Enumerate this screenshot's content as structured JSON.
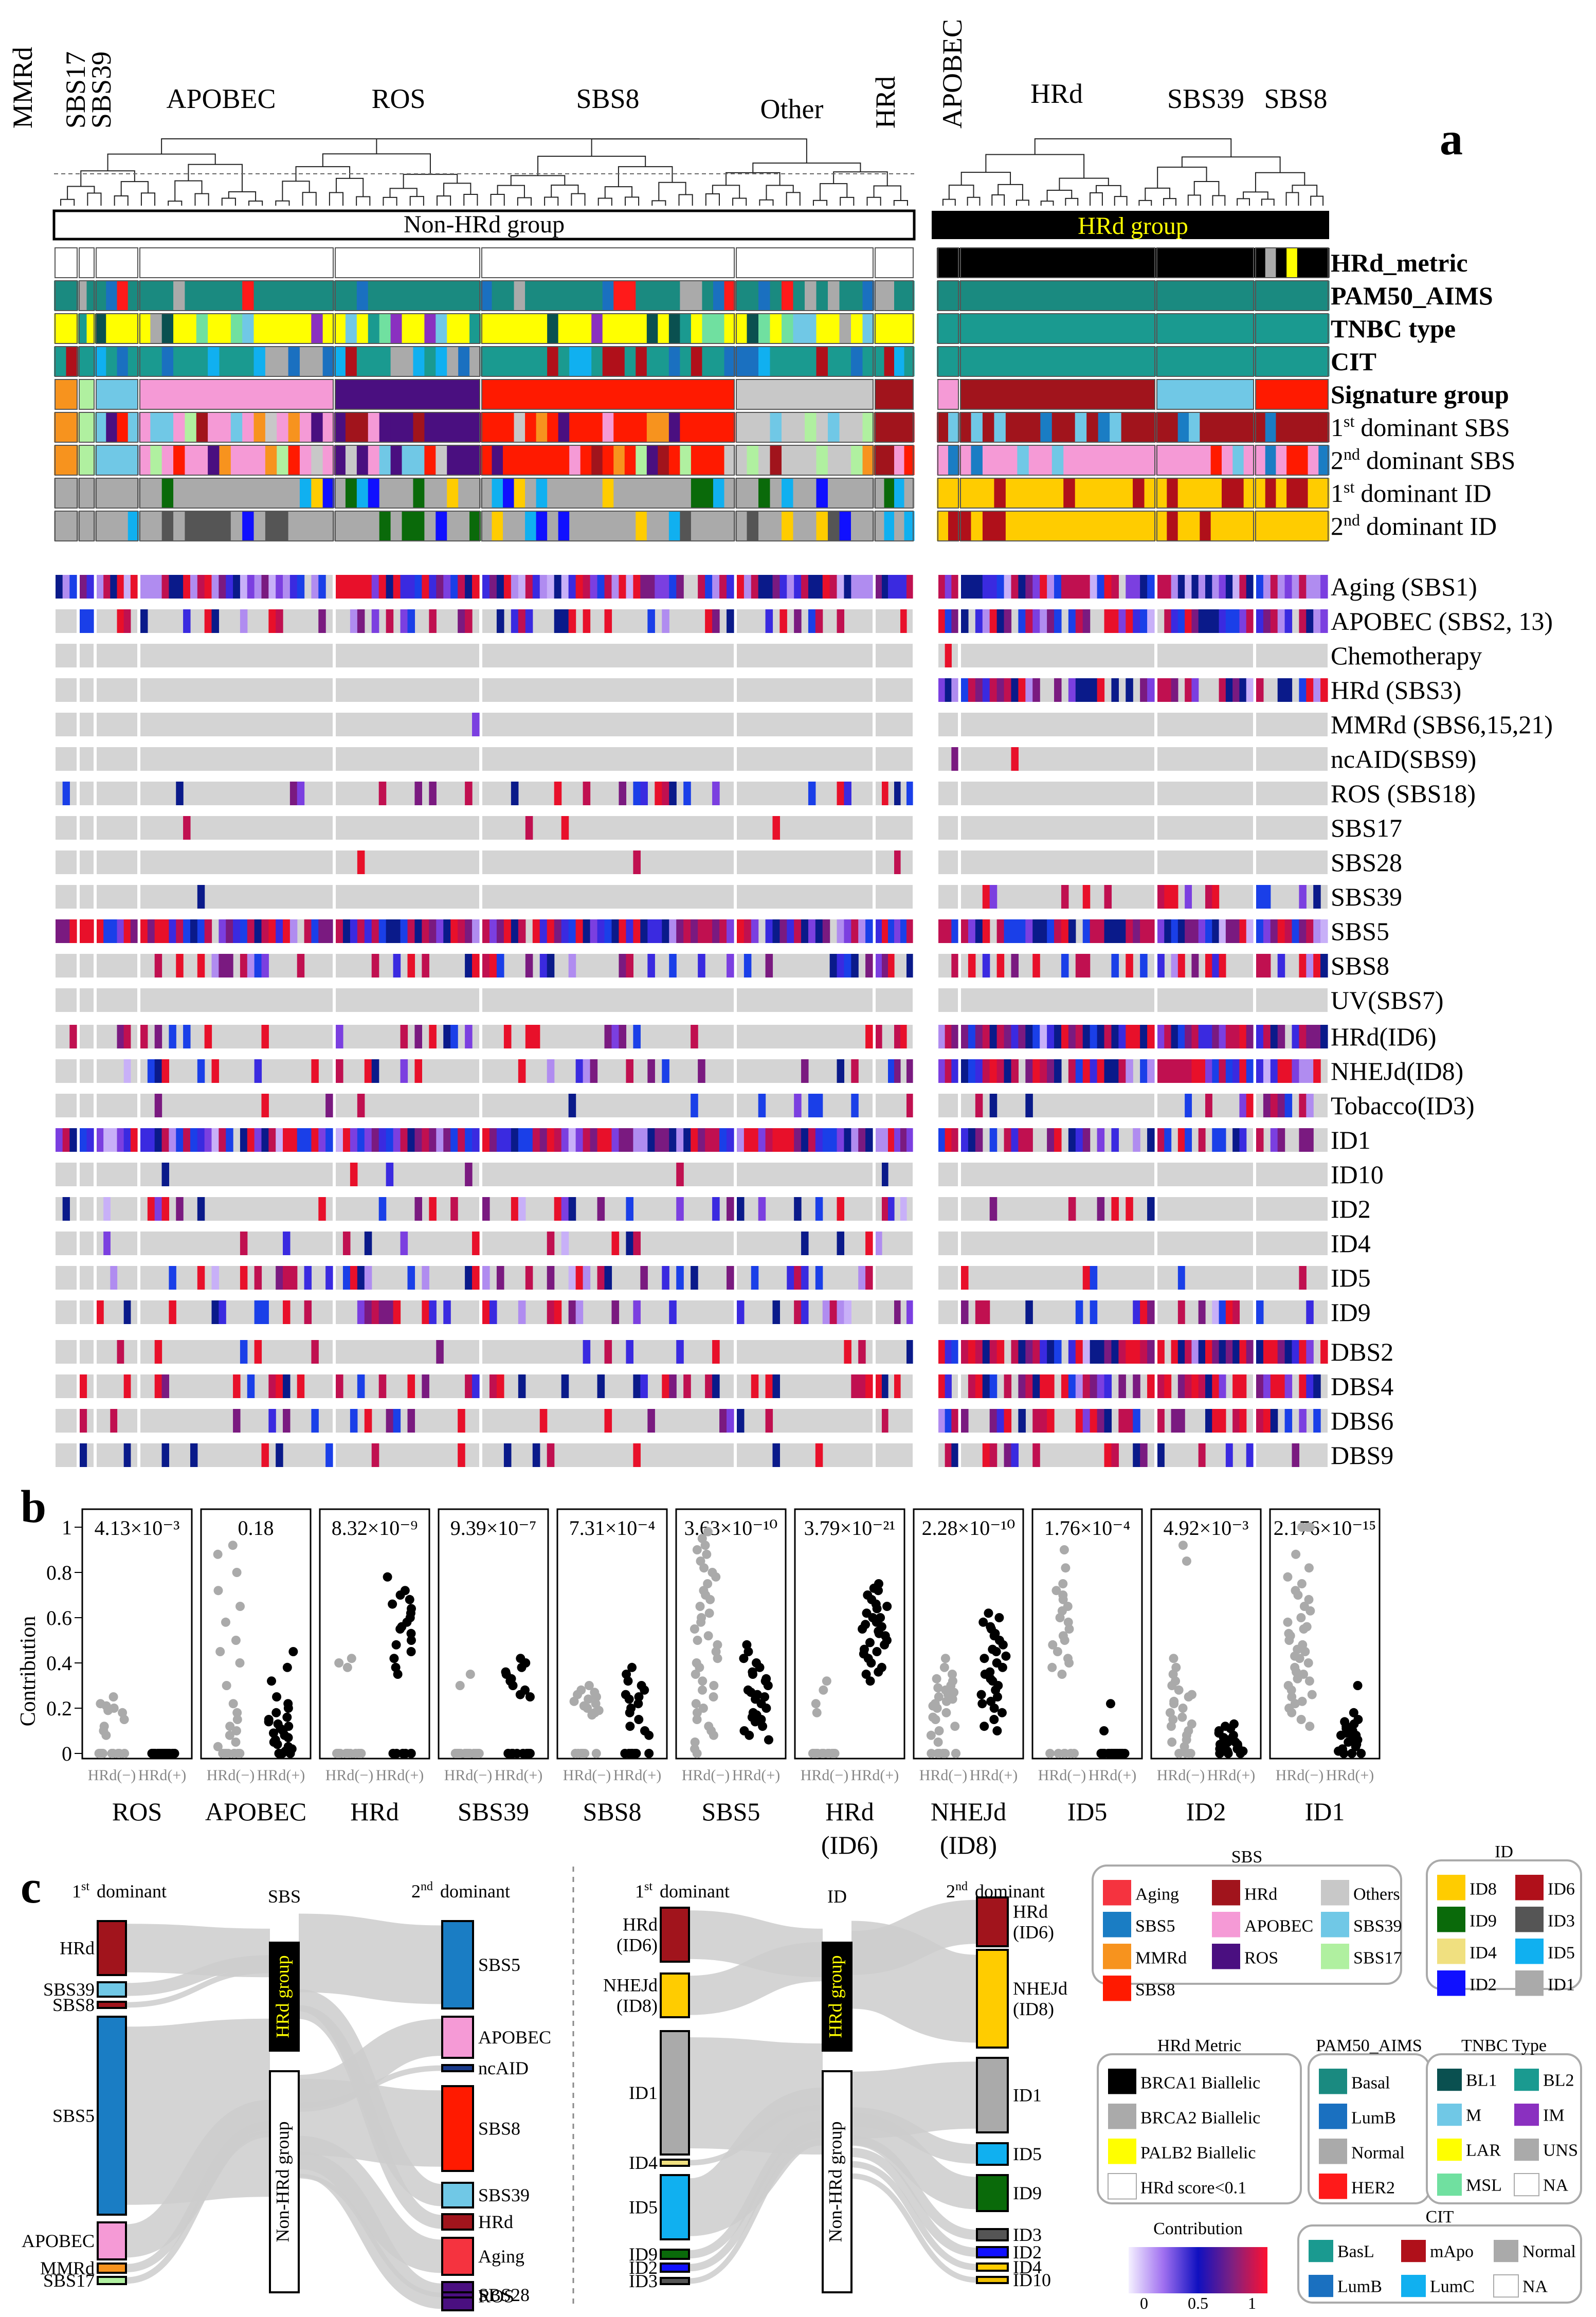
{
  "panel_labels": {
    "a": "a",
    "b": "b",
    "c": "c"
  },
  "panel_a": {
    "left_clusters": [
      "MMRd",
      "SBS17",
      "SBS39",
      "APOBEC",
      "ROS",
      "SBS8",
      "Other",
      "HRd"
    ],
    "right_clusters": [
      "APOBEC",
      "HRd",
      "SBS39",
      "SBS8"
    ],
    "group_left": "Non-HRd group",
    "group_right": "HRd group",
    "annotation_rows": [
      "HRd_metric",
      "PAM50_AIMS",
      "TNBC type",
      "CIT",
      "Signature group"
    ],
    "dominant_rows": [
      {
        "ord": "1",
        "sup": "st",
        "label": "dominant  SBS"
      },
      {
        "ord": "2",
        "sup": "nd",
        "label": "dominant  SBS"
      },
      {
        "ord": "1",
        "sup": "st",
        "label": "dominant  ID"
      },
      {
        "ord": "2",
        "sup": "nd",
        "label": "dominant  ID"
      }
    ],
    "signature_rows": [
      "Aging (SBS1)",
      "APOBEC (SBS2, 13)",
      "Chemotherapy",
      "HRd (SBS3)",
      "MMRd (SBS6,15,21)",
      "ncAID(SBS9)",
      "ROS (SBS18)",
      "SBS17",
      "SBS28",
      "SBS39",
      "SBS5",
      "SBS8",
      "UV(SBS7)",
      "HRd(ID6)",
      "NHEJd(ID8)",
      "Tobacco(ID3)",
      "ID1",
      "ID10",
      "ID2",
      "ID4",
      "ID5",
      "ID9",
      "DBS2",
      "DBS4",
      "DBS6",
      "DBS9"
    ]
  },
  "chart_data": {
    "type": "scatter",
    "ylabel": "Contribution",
    "ylim": [
      0,
      1
    ],
    "yticks": [
      "0",
      "0.2",
      "0.4",
      "0.6",
      "0.8",
      "1"
    ],
    "group_labels": [
      "HRd(−)",
      "HRd(+)"
    ],
    "series_colors": {
      "HRd(−)": "#aaaaaa",
      "HRd(+)": "#000000"
    },
    "panels": [
      {
        "name": "ROS",
        "name2": "",
        "p_value": "4.13×10⁻³",
        "neg": [
          0.2,
          0.18,
          0.22,
          0.15,
          0.12,
          0.25,
          0.08,
          0.1,
          0.19,
          0.21,
          0,
          0,
          0,
          0,
          0,
          0,
          0,
          0,
          0,
          0,
          0,
          0
        ],
        "pos": [
          0,
          0,
          0,
          0,
          0,
          0,
          0,
          0,
          0,
          0,
          0,
          0,
          0,
          0,
          0,
          0,
          0,
          0,
          0,
          0,
          0,
          0,
          0,
          0,
          0,
          0,
          0,
          0
        ]
      },
      {
        "name": "APOBEC",
        "name2": "",
        "p_value": "0.18",
        "neg": [
          0.92,
          0.88,
          0.8,
          0.72,
          0.65,
          0.58,
          0.5,
          0.45,
          0.4,
          0.3,
          0.22,
          0.18,
          0.15,
          0.12,
          0.1,
          0.08,
          0.05,
          0.03,
          0,
          0,
          0,
          0,
          0,
          0,
          0,
          0
        ],
        "pos": [
          0.45,
          0.38,
          0.32,
          0.25,
          0.22,
          0.2,
          0.18,
          0.16,
          0.15,
          0.14,
          0.13,
          0.12,
          0.11,
          0.1,
          0.09,
          0.08,
          0.07,
          0.06,
          0.05,
          0.04,
          0.03,
          0.02,
          0.01,
          0,
          0,
          0
        ]
      },
      {
        "name": "HRd",
        "name2": "",
        "p_value": "8.32×10⁻⁹",
        "neg": [
          0.42,
          0.4,
          0.38,
          0,
          0,
          0,
          0,
          0,
          0,
          0,
          0,
          0,
          0,
          0,
          0,
          0,
          0
        ],
        "pos": [
          0.78,
          0.72,
          0.7,
          0.68,
          0.66,
          0.64,
          0.62,
          0.6,
          0.58,
          0.56,
          0.55,
          0.53,
          0.5,
          0.48,
          0.45,
          0.42,
          0.38,
          0.35,
          0,
          0,
          0,
          0,
          0,
          0
        ]
      },
      {
        "name": "SBS39",
        "name2": "",
        "p_value": "9.39×10⁻⁷",
        "neg": [
          0.35,
          0.3,
          0,
          0,
          0,
          0,
          0,
          0,
          0,
          0,
          0,
          0,
          0,
          0,
          0,
          0,
          0,
          0,
          0,
          0
        ],
        "pos": [
          0.42,
          0.4,
          0.38,
          0.36,
          0.35,
          0.33,
          0.32,
          0.3,
          0.28,
          0.26,
          0.25,
          0,
          0,
          0,
          0,
          0,
          0,
          0,
          0,
          0,
          0
        ]
      },
      {
        "name": "SBS8",
        "name2": "",
        "p_value": "7.31×10⁻⁴",
        "neg": [
          0.3,
          0.28,
          0.27,
          0.26,
          0.25,
          0.24,
          0.23,
          0.22,
          0.21,
          0.2,
          0.19,
          0.18,
          0.17,
          0,
          0,
          0,
          0,
          0,
          0,
          0,
          0,
          0
        ],
        "pos": [
          0.38,
          0.35,
          0.32,
          0.3,
          0.28,
          0.26,
          0.25,
          0.24,
          0.22,
          0.2,
          0.18,
          0.15,
          0.12,
          0.1,
          0.08,
          0,
          0,
          0,
          0,
          0,
          0,
          0
        ]
      },
      {
        "name": "SBS5",
        "name2": "",
        "p_value": "3.63×10⁻¹⁰",
        "neg": [
          0.98,
          0.95,
          0.92,
          0.9,
          0.88,
          0.85,
          0.82,
          0.8,
          0.78,
          0.75,
          0.72,
          0.7,
          0.68,
          0.65,
          0.62,
          0.6,
          0.58,
          0.55,
          0.52,
          0.5,
          0.48,
          0.45,
          0.42,
          0.4,
          0.38,
          0.35,
          0.32,
          0.3,
          0.28,
          0.25,
          0.22,
          0.2,
          0.18,
          0.15,
          0.12,
          0.1,
          0.08,
          0.05,
          0.02,
          0
        ],
        "pos": [
          0.48,
          0.45,
          0.42,
          0.4,
          0.38,
          0.36,
          0.35,
          0.33,
          0.32,
          0.3,
          0.28,
          0.27,
          0.26,
          0.25,
          0.24,
          0.22,
          0.2,
          0.18,
          0.17,
          0.16,
          0.15,
          0.14,
          0.12,
          0.1,
          0.08,
          0.06
        ]
      },
      {
        "name": "HRd",
        "name2": "(ID6)",
        "p_value": "3.79×10⁻²¹",
        "neg": [
          0.32,
          0.28,
          0.22,
          0.18,
          0,
          0,
          0,
          0,
          0,
          0,
          0,
          0,
          0,
          0,
          0,
          0,
          0,
          0,
          0,
          0
        ],
        "pos": [
          0.75,
          0.73,
          0.72,
          0.7,
          0.68,
          0.66,
          0.65,
          0.64,
          0.62,
          0.6,
          0.6,
          0.58,
          0.57,
          0.56,
          0.55,
          0.54,
          0.53,
          0.52,
          0.5,
          0.49,
          0.48,
          0.46,
          0.45,
          0.44,
          0.42,
          0.4,
          0.38,
          0.36,
          0.35,
          0.32
        ]
      },
      {
        "name": "NHEJd",
        "name2": "(ID8)",
        "p_value": "2.28×10⁻¹⁰",
        "neg": [
          0.42,
          0.38,
          0.35,
          0.33,
          0.32,
          0.3,
          0.29,
          0.28,
          0.27,
          0.26,
          0.25,
          0.24,
          0.23,
          0.22,
          0.21,
          0.2,
          0.18,
          0.16,
          0.15,
          0.12,
          0.1,
          0.08,
          0.05,
          0,
          0,
          0,
          0,
          0,
          0,
          0
        ],
        "pos": [
          0.62,
          0.6,
          0.58,
          0.56,
          0.55,
          0.53,
          0.52,
          0.5,
          0.48,
          0.46,
          0.45,
          0.43,
          0.42,
          0.4,
          0.38,
          0.36,
          0.35,
          0.33,
          0.32,
          0.3,
          0.28,
          0.26,
          0.25,
          0.23,
          0.22,
          0.2,
          0.18,
          0.15,
          0.12,
          0.1
        ]
      },
      {
        "name": "ID5",
        "name2": "",
        "p_value": "1.76×10⁻⁴",
        "neg": [
          0.9,
          0.82,
          0.75,
          0.72,
          0.7,
          0.68,
          0.65,
          0.63,
          0.6,
          0.58,
          0.55,
          0.52,
          0.5,
          0.48,
          0.45,
          0.42,
          0.4,
          0.38,
          0.35,
          0,
          0,
          0,
          0,
          0,
          0
        ],
        "pos": [
          0.22,
          0.1,
          0,
          0,
          0,
          0,
          0,
          0,
          0,
          0,
          0,
          0,
          0,
          0,
          0,
          0,
          0,
          0,
          0,
          0
        ]
      },
      {
        "name": "ID2",
        "name2": "",
        "p_value": "4.92×10⁻³",
        "neg": [
          0.92,
          0.85,
          0.42,
          0.38,
          0.35,
          0.32,
          0.3,
          0.28,
          0.26,
          0.25,
          0.23,
          0.22,
          0.2,
          0.18,
          0.16,
          0.15,
          0.13,
          0.12,
          0.1,
          0.08,
          0.06,
          0.05,
          0.03,
          0,
          0,
          0,
          0,
          0
        ],
        "pos": [
          0.13,
          0.12,
          0.11,
          0.1,
          0.09,
          0.08,
          0.07,
          0.06,
          0.06,
          0.05,
          0.05,
          0.04,
          0.04,
          0.03,
          0.03,
          0.02,
          0.02,
          0.01,
          0.01,
          0,
          0,
          0
        ]
      },
      {
        "name": "ID1",
        "name2": "",
        "p_value": "2.176×10⁻¹⁵",
        "neg": [
          1,
          1,
          1,
          0.88,
          0.82,
          0.78,
          0.75,
          0.72,
          0.7,
          0.68,
          0.65,
          0.63,
          0.6,
          0.58,
          0.56,
          0.55,
          0.53,
          0.52,
          0.5,
          0.48,
          0.46,
          0.45,
          0.43,
          0.42,
          0.4,
          0.38,
          0.36,
          0.35,
          0.33,
          0.32,
          0.3,
          0.28,
          0.26,
          0.25,
          0.23,
          0.22,
          0.2,
          0.18,
          0.15,
          0.12
        ],
        "pos": [
          0.3,
          0.18,
          0.15,
          0.14,
          0.13,
          0.12,
          0.11,
          0.1,
          0.09,
          0.08,
          0.08,
          0.07,
          0.06,
          0.05,
          0.05,
          0.04,
          0.03,
          0.02,
          0.01,
          0,
          0,
          0
        ]
      }
    ]
  },
  "panel_c": {
    "sbs_sankey": {
      "left_title_ord": "1",
      "left_title_sup": "st",
      "left_title": "dominant",
      "mid_title": "SBS",
      "right_title_ord": "2",
      "right_title_sup": "nd",
      "right_title": "dominant",
      "left_nodes": [
        "HRd",
        "SBS39",
        "SBS8",
        "SBS5",
        "APOBEC",
        "MMRd",
        "SBS17"
      ],
      "mid_nodes": [
        "HRd group",
        "Non-HRd group"
      ],
      "right_nodes": [
        "SBS5",
        "APOBEC",
        "ncAID",
        "SBS8",
        "SBS39",
        "HRd",
        "Aging",
        "ROS",
        "SBS28"
      ]
    },
    "id_sankey": {
      "left_title_ord": "1",
      "left_title_sup": "st",
      "left_title": "dominant",
      "mid_title": "ID",
      "right_title_ord": "2",
      "right_title_sup": "nd",
      "right_title": "dominant",
      "left_nodes": [
        "HRd\n(ID6)",
        "NHEJd\n(ID8)",
        "ID1",
        "ID4",
        "ID5",
        "ID9",
        "ID2",
        "ID3"
      ],
      "mid_nodes": [
        "HRd group",
        "Non-HRd group"
      ],
      "right_nodes": [
        "HRd\n(ID6)",
        "NHEJd\n(ID8)",
        "ID1",
        "ID5",
        "ID9",
        "ID3",
        "ID2",
        "ID4",
        "ID10"
      ]
    },
    "legends": {
      "sbs": {
        "title": "SBS",
        "items": [
          {
            "label": "Aging",
            "color": "#f5333f"
          },
          {
            "label": "HRd",
            "color": "#a1141c"
          },
          {
            "label": "Others",
            "color": "#c8c8c8"
          },
          {
            "label": "SBS5",
            "color": "#1a7dc4"
          },
          {
            "label": "APOBEC",
            "color": "#f59ad6"
          },
          {
            "label": "SBS39",
            "color": "#70c8e6"
          },
          {
            "label": "MMRd",
            "color": "#f7931e"
          },
          {
            "label": "ROS",
            "color": "#4a0f80"
          },
          {
            "label": "SBS17",
            "color": "#b0f0a0"
          },
          {
            "label": "SBS8",
            "color": "#ff1a00"
          }
        ]
      },
      "id": {
        "title": "ID",
        "items": [
          {
            "label": "ID8",
            "color": "#ffcc00"
          },
          {
            "label": "ID6",
            "color": "#b0101a"
          },
          {
            "label": "ID9",
            "color": "#0a6a0a"
          },
          {
            "label": "ID3",
            "color": "#555555"
          },
          {
            "label": "ID4",
            "color": "#f0e080"
          },
          {
            "label": "ID5",
            "color": "#10b0f0"
          },
          {
            "label": "ID2",
            "color": "#1010ff"
          },
          {
            "label": "ID1",
            "color": "#aaaaaa"
          }
        ]
      },
      "hrd_metric": {
        "title": "HRd Metric",
        "items": [
          {
            "label": "BRCA1 Biallelic",
            "color": "#000000"
          },
          {
            "label": "BRCA2 Biallelic",
            "color": "#aaaaaa"
          },
          {
            "label": "PALB2 Biallelic",
            "color": "#ffff00"
          },
          {
            "label": "HRd score<0.1",
            "color": "#ffffff"
          }
        ]
      },
      "pam50": {
        "title": "PAM50_AIMS",
        "items": [
          {
            "label": "Basal",
            "color": "#1a8a80"
          },
          {
            "label": "LumB",
            "color": "#1a70c0"
          },
          {
            "label": "Normal",
            "color": "#aaaaaa"
          },
          {
            "label": "HER2",
            "color": "#ff1a1a"
          }
        ]
      },
      "tnbc": {
        "title": "TNBC Type",
        "items": [
          {
            "label": "BL1",
            "color": "#0a5050"
          },
          {
            "label": "BL2",
            "color": "#1a9a90"
          },
          {
            "label": "M",
            "color": "#70c8e6"
          },
          {
            "label": "IM",
            "color": "#8a30c0"
          },
          {
            "label": "LAR",
            "color": "#ffff00"
          },
          {
            "label": "UNS",
            "color": "#aaaaaa"
          },
          {
            "label": "MSL",
            "color": "#70e0a0"
          },
          {
            "label": "NA",
            "color": "#ffffff"
          }
        ]
      },
      "cit": {
        "title": "CIT",
        "items": [
          {
            "label": "BasL",
            "color": "#1a9a90"
          },
          {
            "label": "mApo",
            "color": "#b0101a"
          },
          {
            "label": "Normal",
            "color": "#aaaaaa"
          },
          {
            "label": "LumB",
            "color": "#1a70c0"
          },
          {
            "label": "LumC",
            "color": "#10b0f0"
          },
          {
            "label": "NA",
            "color": "#ffffff"
          }
        ]
      },
      "contribution": {
        "title": "Contribution",
        "ticks": [
          "0",
          "0.5",
          "1"
        ]
      }
    }
  },
  "colors": {
    "heat_bg": "#d4d4d4",
    "heat_light": "#b08cf0",
    "heat_mid": "#7b3fe0",
    "heat_blue": "#1a3fe8",
    "heat_navy": "#0a1a8a",
    "heat_purple": "#7a1a80",
    "heat_red": "#e8102a",
    "sankey_flow": "#cccccc"
  }
}
